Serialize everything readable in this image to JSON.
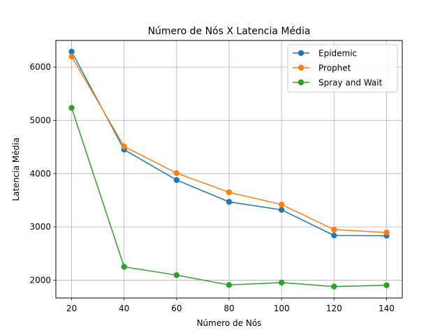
{
  "chart_data": {
    "type": "line",
    "title": "Número de Nós X Latencia Média",
    "xlabel": "Número de Nós",
    "ylabel": "Latencia Média",
    "x": [
      20,
      40,
      60,
      80,
      100,
      120,
      140
    ],
    "xticks": [
      20,
      40,
      60,
      80,
      100,
      120,
      140
    ],
    "yticks": [
      2000,
      3000,
      4000,
      5000,
      6000
    ],
    "xlim": [
      14,
      146
    ],
    "ylim": [
      1665,
      6500
    ],
    "grid": true,
    "legend": "top-right",
    "series": [
      {
        "name": "Epidemic",
        "color": "#1f77b4",
        "values": [
          6290,
          4450,
          3880,
          3470,
          3320,
          2840,
          2835
        ]
      },
      {
        "name": "Prophet",
        "color": "#ff7f0e",
        "values": [
          6200,
          4510,
          4010,
          3650,
          3420,
          2950,
          2895
        ]
      },
      {
        "name": "Spray and Wait",
        "color": "#2ca02c",
        "values": [
          5235,
          2250,
          2095,
          1910,
          1955,
          1880,
          1905
        ]
      }
    ]
  }
}
